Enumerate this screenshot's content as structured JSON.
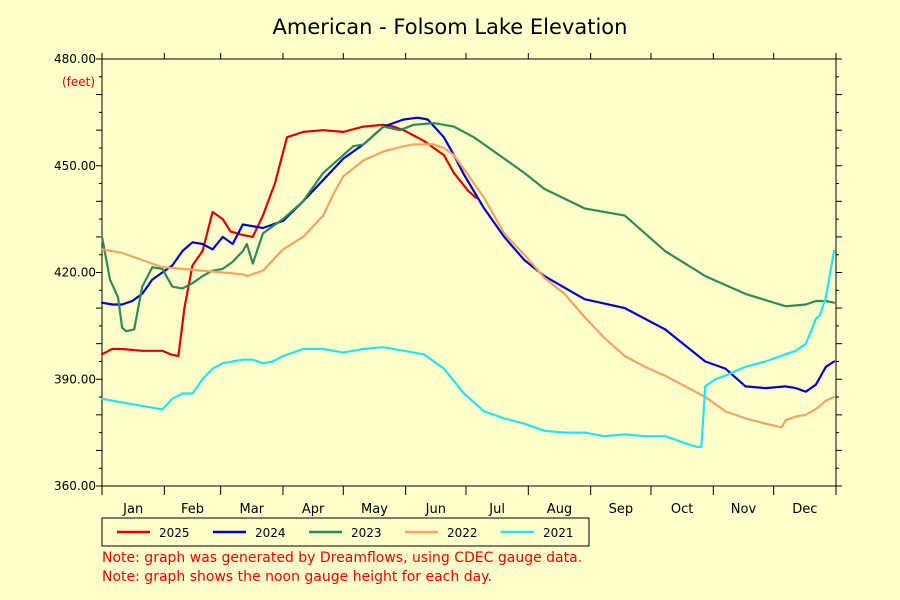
{
  "chart_data": {
    "type": "line",
    "title": "American - Folsom Lake Elevation",
    "unit_label": "(feet)",
    "ylim": [
      360,
      480
    ],
    "yticks": [
      "480.00",
      "450.00",
      "420.00",
      "390.00",
      "360.00"
    ],
    "ytick_values": [
      480,
      450,
      420,
      390,
      360
    ],
    "xlim": [
      0,
      365
    ],
    "months": [
      "Jan",
      "Feb",
      "Mar",
      "Apr",
      "May",
      "Jun",
      "Jul",
      "Aug",
      "Sep",
      "Oct",
      "Nov",
      "Dec"
    ],
    "grid": true,
    "legend_position": "bottom",
    "series": [
      {
        "name": "2025",
        "color": "#dd0000",
        "x": [
          0,
          5,
          10,
          20,
          30,
          34,
          38,
          41,
          45,
          50,
          55,
          60,
          64,
          70,
          75,
          80,
          86,
          92,
          100,
          110,
          120,
          130,
          140,
          145,
          150,
          155,
          160,
          165,
          170,
          175,
          182,
          186
        ],
        "y": [
          397,
          398.5,
          398.5,
          398,
          398,
          397,
          396.5,
          410,
          422,
          426,
          437,
          435,
          431.5,
          430.5,
          430,
          436,
          445,
          458,
          459.5,
          460,
          459.5,
          461,
          461.5,
          461,
          460,
          458.5,
          457,
          455,
          453,
          448,
          443,
          441
        ]
      },
      {
        "name": "2024",
        "color": "#0000cc",
        "x": [
          0,
          5,
          10,
          15,
          20,
          25,
          30,
          35,
          40,
          45,
          50,
          55,
          60,
          65,
          70,
          75,
          80,
          90,
          100,
          110,
          120,
          130,
          140,
          150,
          157,
          162,
          170,
          175,
          180,
          190,
          200,
          210,
          220,
          240,
          260,
          280,
          300,
          310,
          320,
          330,
          340,
          345,
          350,
          355,
          360,
          364
        ],
        "y": [
          411.5,
          411,
          411,
          412,
          414,
          418,
          420,
          422,
          426,
          428.5,
          428,
          426.5,
          430,
          428,
          433.5,
          433,
          432.5,
          434.5,
          440,
          446,
          452,
          456,
          461,
          463,
          463.5,
          463,
          458,
          453,
          447.5,
          438,
          430,
          423.5,
          419,
          412.5,
          410,
          404,
          395,
          393,
          388,
          387.5,
          388,
          387.5,
          386.5,
          388.5,
          393.5,
          395
        ]
      },
      {
        "name": "2023",
        "color": "#2e8b57",
        "x": [
          0,
          4,
          8,
          10,
          12,
          16,
          20,
          25,
          30,
          35,
          40,
          45,
          50,
          55,
          60,
          65,
          70,
          72,
          75,
          80,
          85,
          90,
          100,
          110,
          120,
          125,
          130,
          140,
          148,
          155,
          165,
          175,
          185,
          200,
          210,
          220,
          240,
          260,
          280,
          300,
          320,
          340,
          350,
          355,
          360,
          364
        ],
        "y": [
          430,
          418,
          413,
          404.5,
          403.5,
          404,
          416,
          421.5,
          421,
          416,
          415.5,
          417,
          419,
          420.5,
          421,
          423,
          426,
          428,
          422.5,
          431,
          433,
          435,
          440,
          448,
          453,
          455.5,
          456,
          461,
          460,
          461.5,
          462,
          461,
          458,
          452,
          448,
          443.5,
          438,
          436,
          426,
          419,
          414,
          410.5,
          411,
          412,
          412,
          411.5
        ]
      },
      {
        "name": "2022",
        "color": "#f4a460",
        "x": [
          0,
          5,
          10,
          20,
          30,
          40,
          50,
          60,
          70,
          72,
          80,
          90,
          100,
          110,
          115,
          120,
          130,
          140,
          150,
          155,
          160,
          165,
          170,
          175,
          180,
          185,
          190,
          200,
          210,
          220,
          230,
          240,
          250,
          260,
          270,
          280,
          290,
          300,
          310,
          320,
          330,
          334,
          338,
          340,
          345,
          350,
          356,
          360,
          364
        ],
        "y": [
          426.5,
          426,
          425.5,
          423.5,
          421.5,
          421,
          420.5,
          420,
          419.5,
          419,
          420.5,
          426.5,
          430,
          436,
          442,
          447,
          451.5,
          454,
          455.5,
          456,
          456,
          456,
          455,
          453,
          449,
          445,
          441,
          431,
          425,
          418.5,
          414,
          407.5,
          401.5,
          396.5,
          393.5,
          391,
          388,
          385,
          381,
          379,
          377.5,
          377,
          376.5,
          378.5,
          379.5,
          380,
          382,
          384,
          385
        ]
      },
      {
        "name": "2021",
        "color": "#22e3f4",
        "x": [
          0,
          10,
          20,
          25,
          30,
          35,
          40,
          45,
          50,
          55,
          60,
          65,
          70,
          75,
          80,
          85,
          90,
          100,
          110,
          120,
          130,
          140,
          150,
          155,
          160,
          170,
          180,
          190,
          200,
          210,
          220,
          230,
          240,
          250,
          260,
          270,
          280,
          285,
          290,
          296,
          298,
          300,
          305,
          310,
          320,
          330,
          340,
          345,
          350,
          353,
          355,
          357,
          360,
          364
        ],
        "y": [
          384.5,
          383.5,
          382.5,
          382,
          381.5,
          384.5,
          386,
          386,
          390,
          393,
          394.5,
          395,
          395.5,
          395.5,
          394.5,
          395,
          396.5,
          398.5,
          398.5,
          397.5,
          398.5,
          399,
          398,
          397.5,
          397,
          393,
          386,
          381,
          379,
          377.5,
          375.5,
          375,
          375,
          374,
          374.5,
          374,
          374,
          373,
          372,
          371,
          371,
          388,
          390,
          391,
          393.5,
          395,
          397,
          398,
          400,
          404,
          407,
          408,
          413,
          426
        ]
      }
    ]
  },
  "notes": [
    "Note: graph was generated by Dreamflows, using CDEC gauge data.",
    "Note: graph shows the noon gauge height for each day."
  ]
}
